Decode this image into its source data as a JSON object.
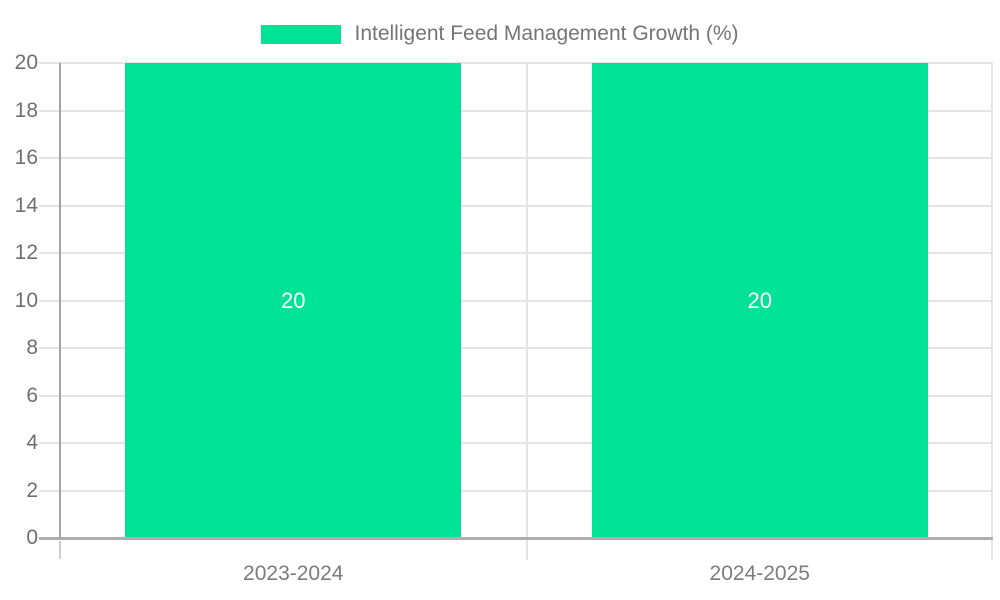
{
  "chart_data": {
    "type": "bar",
    "title": "Intelligent Feed Management Growth (%)",
    "legend": {
      "position": "top",
      "label": "Intelligent Feed Management Growth (%)"
    },
    "categories": [
      "2023-2024",
      "2024-2025"
    ],
    "series": [
      {
        "name": "Intelligent Feed Management Growth (%)",
        "values": [
          20,
          20
        ]
      }
    ],
    "data_labels": [
      "20",
      "20"
    ],
    "xlabel": "",
    "ylabel": "",
    "ylim": [
      0,
      20
    ],
    "yticks": [
      0,
      2,
      4,
      6,
      8,
      10,
      12,
      14,
      16,
      18,
      20
    ],
    "grid": true,
    "colors": {
      "bar": "#00E396",
      "data_label": "#ffffff",
      "grid_line": "#e4e4e4",
      "y_axis_line": "#a3a3a3",
      "x_axis_line": "#aeaeae",
      "axis_tick": "#cccccc",
      "y_tick_label": "#6f6f6f",
      "x_tick_label": "#7c7c7c",
      "legend_text": "#757575",
      "background": "#ffffff"
    }
  }
}
